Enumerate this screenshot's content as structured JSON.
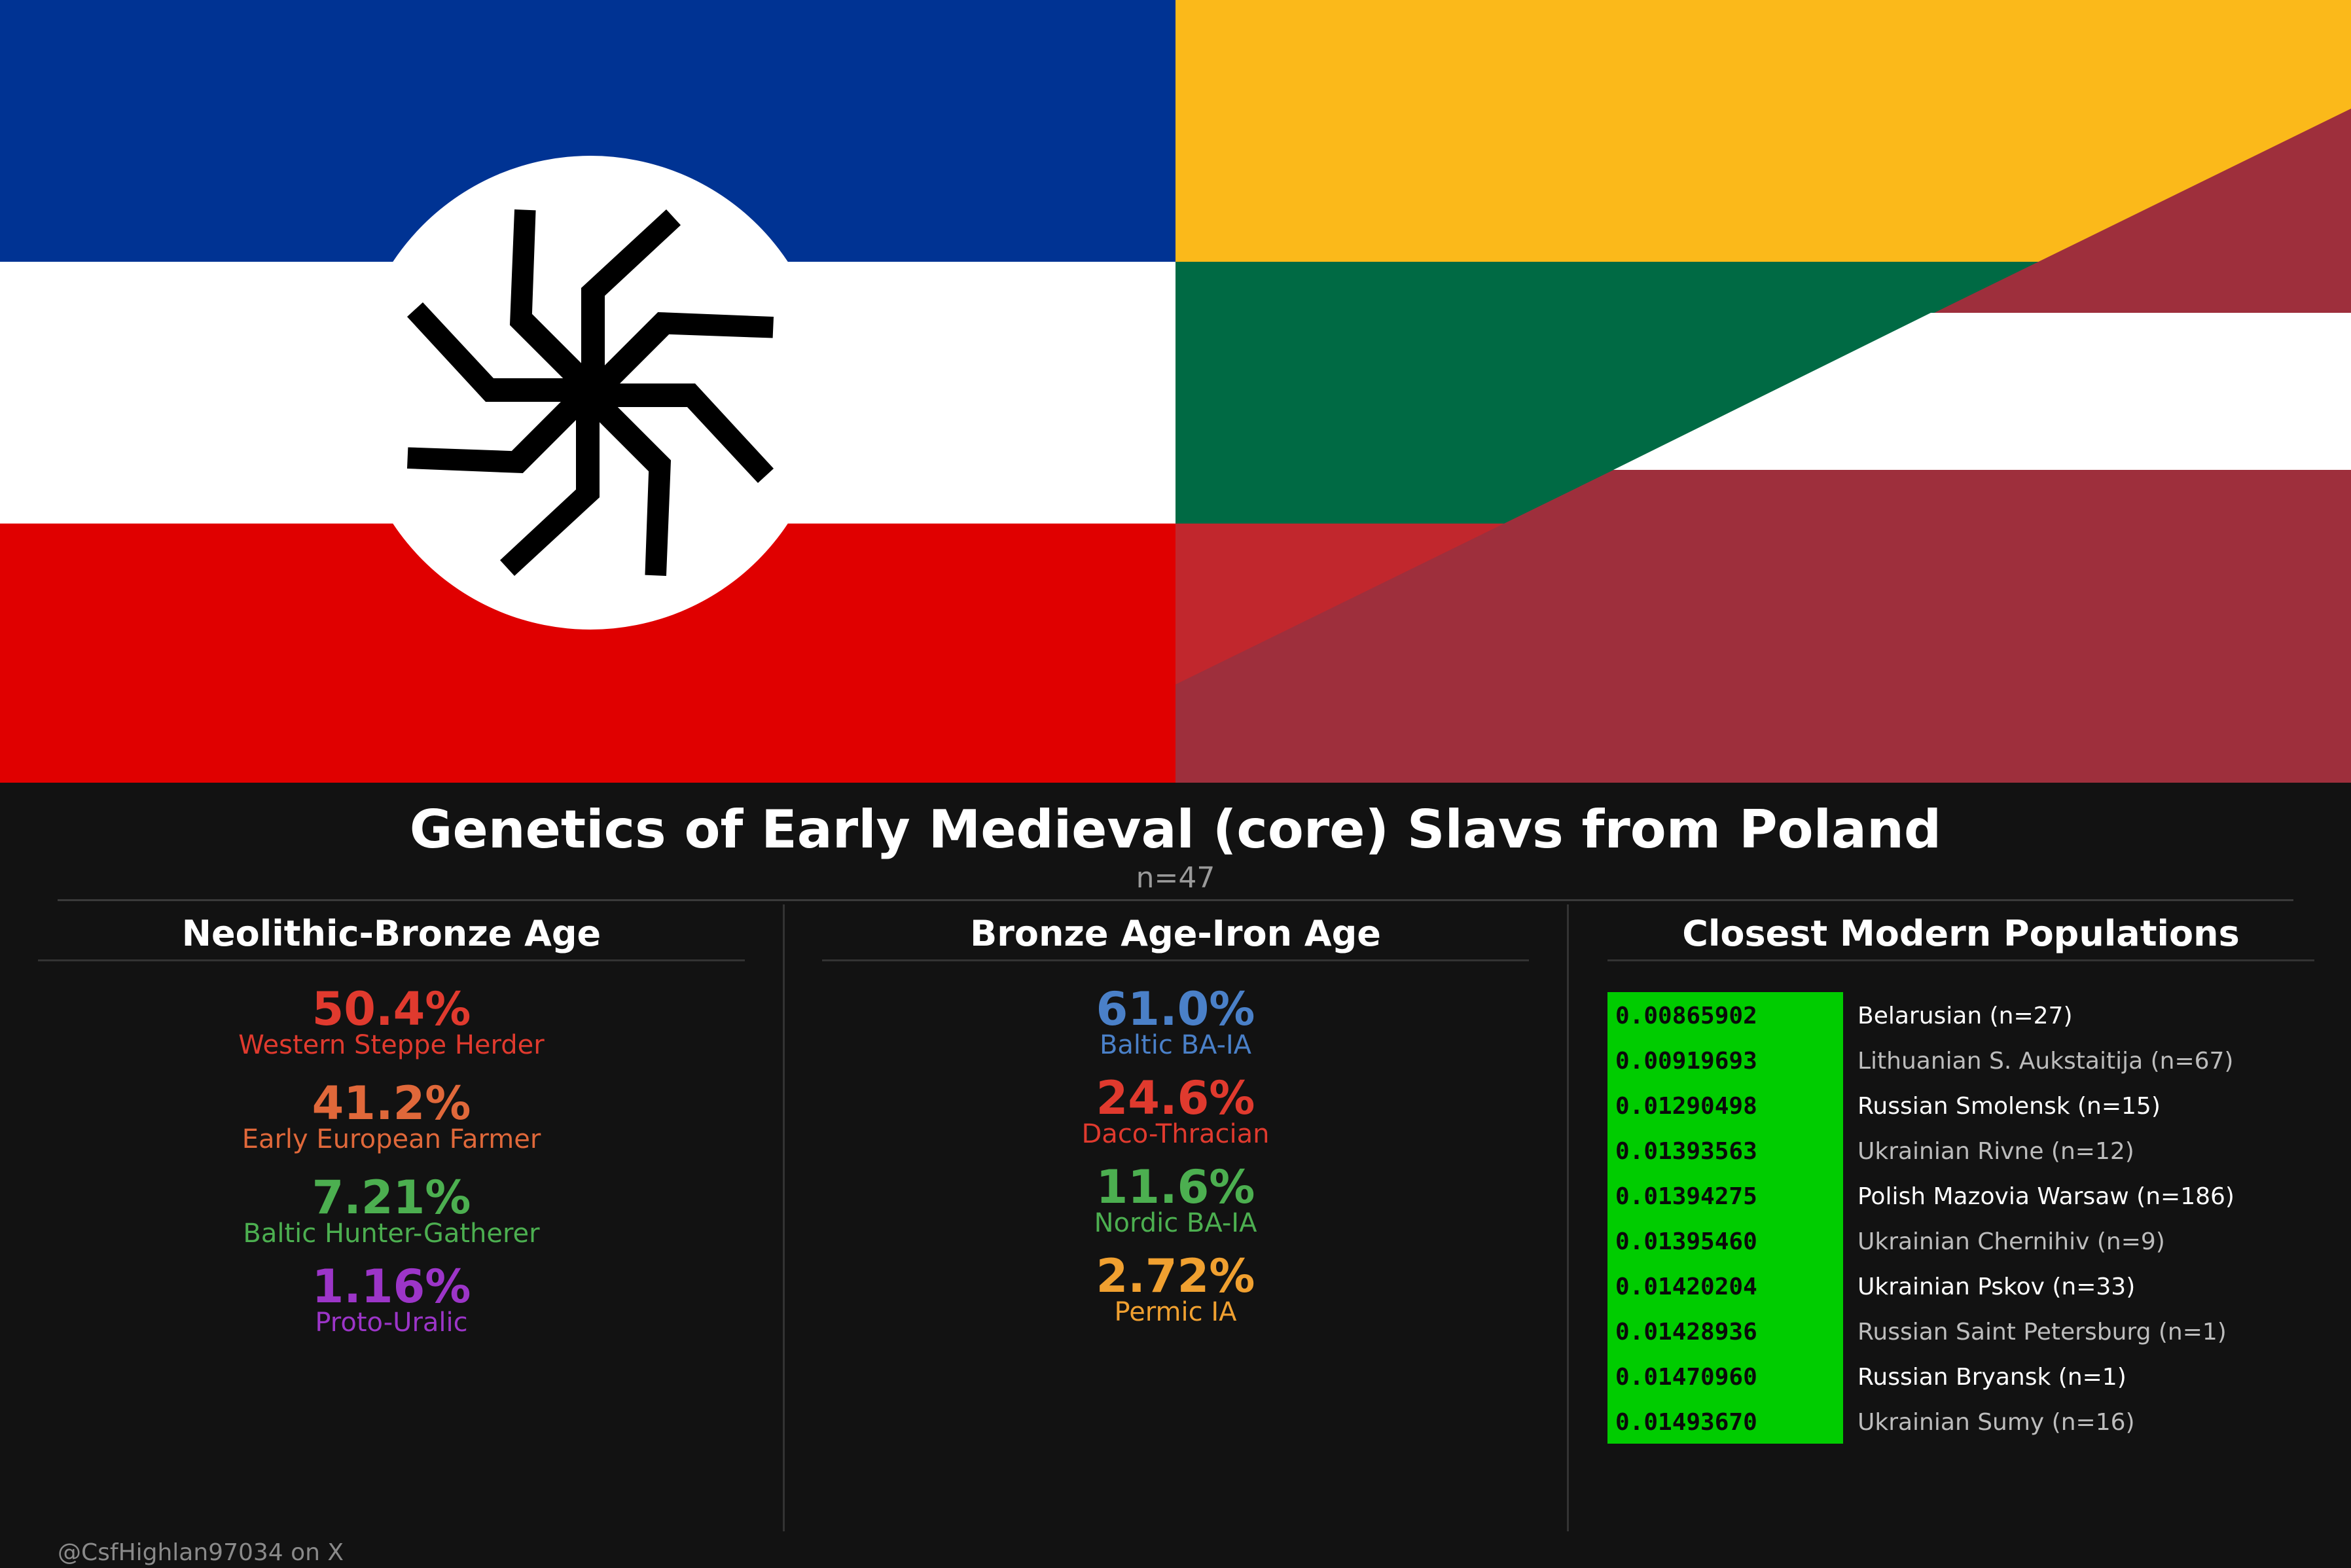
{
  "colors": {
    "background": "#121212",
    "blue": "#003393",
    "white": "#ffffff",
    "red": "#e00000",
    "lt_yellow": "#fbb91a",
    "lt_green": "#006a44",
    "lt_red": "#c1272d",
    "lv_carmine": "#9e2f3c",
    "distance_bg": "#00cc00"
  },
  "flags": {
    "left": {
      "symbol": "kolovrat-icon"
    },
    "right": {
      "flags": [
        "Lithuania",
        "Latvia"
      ]
    }
  },
  "title": "Genetics of Early Medieval (core) Slavs from Poland",
  "subtitle": "n=47",
  "columns": [
    {
      "heading": "Neolithic-Bronze Age",
      "components": [
        {
          "pct": "50.4%",
          "label": "Western Steppe Herder",
          "color": "#e03a2e"
        },
        {
          "pct": "41.2%",
          "label": "Early European Farmer",
          "color": "#e0683a"
        },
        {
          "pct": "7.21%",
          "label": "Baltic Hunter-Gatherer",
          "color": "#4caf50"
        },
        {
          "pct": "1.16%",
          "label": "Proto-Uralic",
          "color": "#9c35c8"
        }
      ]
    },
    {
      "heading": "Bronze Age-Iron Age",
      "components": [
        {
          "pct": "61.0%",
          "label": "Baltic BA-IA",
          "color": "#4a80c8"
        },
        {
          "pct": "24.6%",
          "label": "Daco-Thracian",
          "color": "#e03a2e"
        },
        {
          "pct": "11.6%",
          "label": "Nordic BA-IA",
          "color": "#4caf50"
        },
        {
          "pct": "2.72%",
          "label": "Permic IA",
          "color": "#f0a030"
        }
      ]
    }
  ],
  "closest": {
    "heading": "Closest Modern Populations",
    "rows": [
      {
        "distance": "0.00865902",
        "population": "Belarusian (n=27)",
        "color": "#ffffff"
      },
      {
        "distance": "0.00919693",
        "population": "Lithuanian S. Aukstaitija (n=67)",
        "color": "#bdbdbd"
      },
      {
        "distance": "0.01290498",
        "population": "Russian Smolensk (n=15)",
        "color": "#ffffff"
      },
      {
        "distance": "0.01393563",
        "population": "Ukrainian Rivne (n=12)",
        "color": "#bdbdbd"
      },
      {
        "distance": "0.01394275",
        "population": "Polish Mazovia Warsaw (n=186)",
        "color": "#ffffff"
      },
      {
        "distance": "0.01395460",
        "population": "Ukrainian Chernihiv (n=9)",
        "color": "#bdbdbd"
      },
      {
        "distance": "0.01420204",
        "population": "Ukrainian Pskov (n=33)",
        "color": "#ffffff"
      },
      {
        "distance": "0.01428936",
        "population": "Russian Saint Petersburg (n=1)",
        "color": "#bdbdbd"
      },
      {
        "distance": "0.01470960",
        "population": "Russian Bryansk (n=1)",
        "color": "#ffffff"
      },
      {
        "distance": "0.01493670",
        "population": "Ukrainian Sumy (n=16)",
        "color": "#bdbdbd"
      }
    ]
  },
  "credit": "@CsfHighlan97034 on X"
}
